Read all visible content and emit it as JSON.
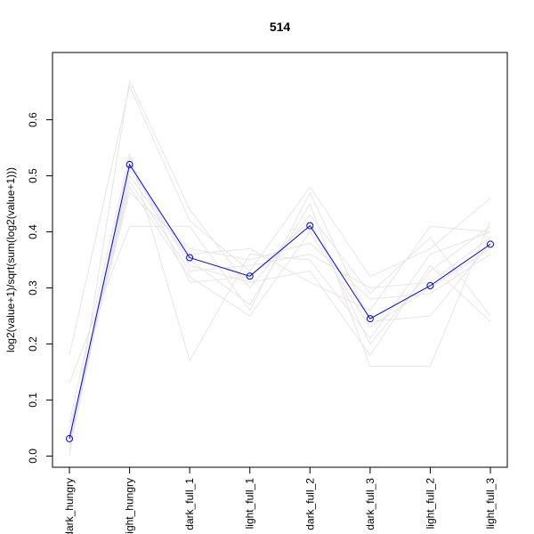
{
  "chart_data": {
    "type": "line",
    "title": "514",
    "xlabel": "",
    "ylabel": "log2(value+1)/sqrt(sum(log2(value+1)))",
    "categories": [
      "dark_hungry",
      "light_hungry",
      "dark_full_1",
      "light_full_1",
      "dark_full_2",
      "dark_full_3",
      "light_full_2",
      "light_full_3"
    ],
    "ylim": [
      -0.02,
      0.72
    ],
    "yticks": [
      0.0,
      0.1,
      0.2,
      0.3,
      0.4,
      0.5,
      0.6
    ],
    "ytick_labels": [
      "0.0",
      "0.1",
      "0.2",
      "0.3",
      "0.4",
      "0.5",
      "0.6"
    ],
    "grid": false,
    "highlight_series": {
      "values": [
        0.031,
        0.52,
        0.354,
        0.321,
        0.411,
        0.245,
        0.304,
        0.378
      ],
      "color": "#0000ff",
      "markers": "open-circle"
    },
    "background_series_color": "#e6e6e6",
    "background_series": [
      {
        "values": [
          0.18,
          0.66,
          0.42,
          0.33,
          0.48,
          0.32,
          0.37,
          0.46
        ]
      },
      {
        "values": [
          0.0,
          0.67,
          0.44,
          0.3,
          0.43,
          0.29,
          0.39,
          0.25
        ]
      },
      {
        "values": [
          0.13,
          0.41,
          0.41,
          0.26,
          0.47,
          0.24,
          0.25,
          0.38
        ]
      },
      {
        "values": [
          0.02,
          0.5,
          0.35,
          0.27,
          0.45,
          0.16,
          0.16,
          0.42
        ]
      },
      {
        "values": [
          0.06,
          0.54,
          0.17,
          0.36,
          0.35,
          0.21,
          0.36,
          0.4
        ]
      },
      {
        "values": [
          0.03,
          0.49,
          0.33,
          0.34,
          0.36,
          0.3,
          0.31,
          0.39
        ]
      },
      {
        "values": [
          0.04,
          0.48,
          0.32,
          0.25,
          0.4,
          0.23,
          0.3,
          0.37
        ]
      },
      {
        "values": [
          0.01,
          0.51,
          0.36,
          0.37,
          0.31,
          0.26,
          0.41,
          0.4
        ]
      },
      {
        "values": [
          0.02,
          0.52,
          0.34,
          0.31,
          0.33,
          0.18,
          0.34,
          0.24
        ]
      },
      {
        "values": [
          0.05,
          0.47,
          0.37,
          0.35,
          0.38,
          0.28,
          0.29,
          0.36
        ]
      },
      {
        "values": [
          0.03,
          0.53,
          0.31,
          0.32,
          0.42,
          0.2,
          0.33,
          0.41
        ]
      }
    ]
  }
}
